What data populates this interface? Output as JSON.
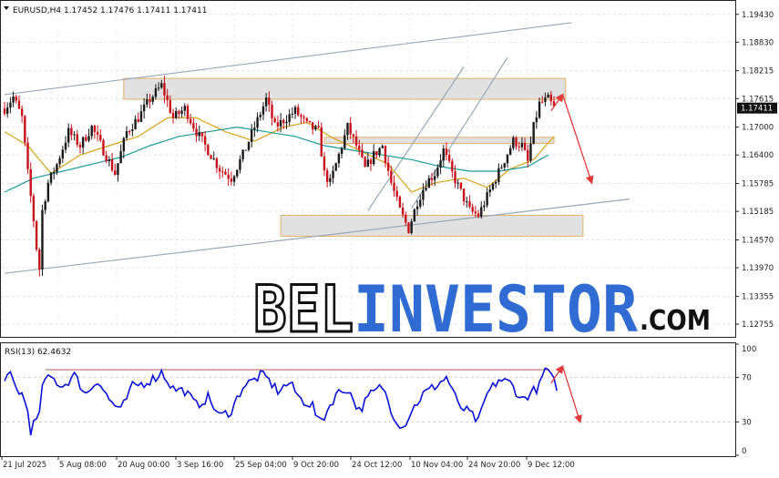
{
  "header": {
    "symbol_icon": "triangle-down-icon",
    "main_info": "EURUSD,H4  1.17452  1.17476  1.17411  1.17411",
    "rsi_info": "RSI(13) 62.4632"
  },
  "watermark": {
    "part1": "BEL",
    "part2": "INVESTOR",
    "part3": ".COM",
    "color1": "#111111",
    "color2": "#2f6bd3"
  },
  "colors": {
    "bull": "#1a1a1a",
    "bear": "#c8101a",
    "ma_fast": "#d7a21a",
    "ma_slow": "#1a9b9b",
    "channel": "#9aa7b8",
    "zone_fill": "#e1e1e1",
    "zone_border": "#e3b06a",
    "arrow": "#e23a3a",
    "rsi": "#0a10d8",
    "rsi_level": "#b07070",
    "price_tag_bg": "#111111",
    "price_tag_fg": "#ffffff"
  },
  "chart_data": [
    {
      "type": "candlestick",
      "symbol": "EURUSD",
      "timeframe": "H4",
      "ohlc_last": {
        "open": 1.17452,
        "high": 1.17476,
        "low": 1.17411,
        "close": 1.17411
      },
      "current_price": "1.17411",
      "ylim": [
        1.125,
        1.197
      ],
      "y_ticks": [
        "1.19430",
        "1.18830",
        "1.18215",
        "1.17615",
        "1.17000",
        "1.16400",
        "1.15785",
        "1.15185",
        "1.14570",
        "1.13970",
        "1.13355",
        "1.12755"
      ],
      "y_tick_values": [
        1.1943,
        1.1883,
        1.18215,
        1.17615,
        1.17,
        1.164,
        1.15785,
        1.15185,
        1.1457,
        1.1397,
        1.13355,
        1.12755
      ],
      "x_ticks": [
        "21 Jul 2025",
        "5 Aug 08:00",
        "20 Aug 00:00",
        "3 Sep 16:00",
        "25 Sep 04:00",
        "9 Oct 20:00",
        "24 Oct 12:00",
        "10 Nov 04:00",
        "24 Nov 20:00",
        "9 Dec 12:00"
      ],
      "price_path": [
        [
          0,
          1.174
        ],
        [
          3,
          1.1765
        ],
        [
          6,
          1.172
        ],
        [
          8,
          1.16
        ],
        [
          10,
          1.15
        ],
        [
          11,
          1.144
        ],
        [
          12,
          1.1395
        ],
        [
          13,
          1.152
        ],
        [
          15,
          1.158
        ],
        [
          18,
          1.162
        ],
        [
          22,
          1.169
        ],
        [
          26,
          1.166
        ],
        [
          30,
          1.17
        ],
        [
          34,
          1.165
        ],
        [
          38,
          1.16
        ],
        [
          42,
          1.169
        ],
        [
          46,
          1.172
        ],
        [
          50,
          1.176
        ],
        [
          54,
          1.179
        ],
        [
          58,
          1.172
        ],
        [
          62,
          1.174
        ],
        [
          66,
          1.169
        ],
        [
          70,
          1.165
        ],
        [
          74,
          1.161
        ],
        [
          78,
          1.159
        ],
        [
          82,
          1.164
        ],
        [
          86,
          1.17
        ],
        [
          88,
          1.173
        ],
        [
          90,
          1.176
        ],
        [
          93,
          1.17
        ],
        [
          96,
          1.1715
        ],
        [
          100,
          1.1735
        ],
        [
          104,
          1.1705
        ],
        [
          108,
          1.169
        ],
        [
          110,
          1.16
        ],
        [
          112,
          1.158
        ],
        [
          115,
          1.164
        ],
        [
          118,
          1.17
        ],
        [
          121,
          1.166
        ],
        [
          124,
          1.161
        ],
        [
          127,
          1.164
        ],
        [
          130,
          1.166
        ],
        [
          133,
          1.158
        ],
        [
          136,
          1.152
        ],
        [
          139,
          1.148
        ],
        [
          142,
          1.154
        ],
        [
          145,
          1.158
        ],
        [
          148,
          1.16
        ],
        [
          151,
          1.165
        ],
        [
          154,
          1.16
        ],
        [
          157,
          1.156
        ],
        [
          160,
          1.152
        ],
        [
          163,
          1.151
        ],
        [
          166,
          1.155
        ],
        [
          169,
          1.159
        ],
        [
          172,
          1.163
        ],
        [
          175,
          1.167
        ],
        [
          178,
          1.166
        ],
        [
          180,
          1.1625
        ],
        [
          182,
          1.17
        ],
        [
          184,
          1.175
        ],
        [
          187,
          1.176
        ],
        [
          189,
          1.1741
        ]
      ],
      "moving_averages": [
        {
          "color_key": "ma_fast",
          "path": [
            [
              0,
              1.169
            ],
            [
              8,
              1.166
            ],
            [
              16,
              1.16
            ],
            [
              26,
              1.164
            ],
            [
              36,
              1.166
            ],
            [
              46,
              1.168
            ],
            [
              56,
              1.172
            ],
            [
              66,
              1.172
            ],
            [
              76,
              1.169
            ],
            [
              86,
              1.167
            ],
            [
              96,
              1.17
            ],
            [
              104,
              1.171
            ],
            [
              112,
              1.168
            ],
            [
              122,
              1.165
            ],
            [
              132,
              1.162
            ],
            [
              140,
              1.156
            ],
            [
              148,
              1.158
            ],
            [
              158,
              1.159
            ],
            [
              166,
              1.157
            ],
            [
              174,
              1.161
            ],
            [
              182,
              1.163
            ],
            [
              189,
              1.168
            ]
          ]
        },
        {
          "color_key": "ma_slow",
          "path": [
            [
              0,
              1.156
            ],
            [
              10,
              1.159
            ],
            [
              20,
              1.1605
            ],
            [
              30,
              1.162
            ],
            [
              40,
              1.1635
            ],
            [
              50,
              1.166
            ],
            [
              60,
              1.168
            ],
            [
              70,
              1.169
            ],
            [
              80,
              1.17
            ],
            [
              90,
              1.169
            ],
            [
              100,
              1.168
            ],
            [
              110,
              1.166
            ],
            [
              120,
              1.165
            ],
            [
              130,
              1.164
            ],
            [
              140,
              1.163
            ],
            [
              150,
              1.1615
            ],
            [
              160,
              1.1605
            ],
            [
              170,
              1.1605
            ],
            [
              180,
              1.1615
            ],
            [
              187,
              1.164
            ]
          ]
        }
      ],
      "channels": [
        [
          [
            0,
            1.177
          ],
          [
            195,
            1.1925
          ]
        ],
        [
          [
            0,
            1.1385
          ],
          [
            215,
            1.1545
          ]
        ],
        [
          [
            125,
            1.152
          ],
          [
            158,
            1.183
          ]
        ],
        [
          [
            140,
            1.1525
          ],
          [
            173,
            1.185
          ]
        ]
      ],
      "zones": [
        {
          "x": [
            41,
            193
          ],
          "y": [
            1.176,
            1.1805
          ]
        },
        {
          "x": [
            110,
            189
          ],
          "y": [
            1.1665,
            1.1678
          ]
        },
        {
          "x": [
            95,
            199
          ],
          "y": [
            1.1465,
            1.151
          ]
        }
      ],
      "arrows": [
        [
          [
            188,
            1.1735
          ],
          [
            192,
            1.177
          ]
        ],
        [
          [
            192,
            1.177
          ],
          [
            202,
            1.158
          ]
        ]
      ],
      "x_count": 190
    },
    {
      "type": "line",
      "name": "RSI(13)",
      "value": "62.4632",
      "ylim": [
        0,
        100
      ],
      "y_ticks": [
        "100",
        "70",
        "30",
        "0"
      ],
      "y_tick_values": [
        100,
        70,
        30,
        0
      ],
      "levels": [
        70,
        30
      ],
      "resistance_line": [
        [
          14,
          77
        ],
        [
          170,
          77
        ]
      ],
      "values_path": [
        [
          0,
          65
        ],
        [
          2,
          72
        ],
        [
          4,
          60
        ],
        [
          6,
          55
        ],
        [
          8,
          40
        ],
        [
          9,
          20
        ],
        [
          10,
          28
        ],
        [
          12,
          35
        ],
        [
          13,
          65
        ],
        [
          16,
          70
        ],
        [
          20,
          62
        ],
        [
          24,
          72
        ],
        [
          28,
          55
        ],
        [
          32,
          68
        ],
        [
          36,
          50
        ],
        [
          40,
          40
        ],
        [
          44,
          62
        ],
        [
          48,
          65
        ],
        [
          52,
          70
        ],
        [
          54,
          75
        ],
        [
          58,
          60
        ],
        [
          62,
          58
        ],
        [
          66,
          45
        ],
        [
          70,
          52
        ],
        [
          74,
          35
        ],
        [
          78,
          40
        ],
        [
          82,
          62
        ],
        [
          86,
          68
        ],
        [
          88,
          72
        ],
        [
          90,
          70
        ],
        [
          94,
          58
        ],
        [
          98,
          65
        ],
        [
          102,
          50
        ],
        [
          106,
          45
        ],
        [
          108,
          30
        ],
        [
          110,
          35
        ],
        [
          114,
          55
        ],
        [
          118,
          60
        ],
        [
          122,
          40
        ],
        [
          126,
          55
        ],
        [
          130,
          62
        ],
        [
          134,
          35
        ],
        [
          137,
          25
        ],
        [
          140,
          40
        ],
        [
          144,
          55
        ],
        [
          148,
          62
        ],
        [
          152,
          70
        ],
        [
          154,
          60
        ],
        [
          156,
          45
        ],
        [
          160,
          38
        ],
        [
          163,
          30
        ],
        [
          166,
          55
        ],
        [
          170,
          68
        ],
        [
          174,
          65
        ],
        [
          178,
          50
        ],
        [
          182,
          58
        ],
        [
          184,
          62
        ],
        [
          186,
          78
        ],
        [
          188,
          70
        ],
        [
          190,
          62
        ]
      ],
      "arrows": [
        [
          [
            188,
            65
          ],
          [
            192,
            80
          ]
        ],
        [
          [
            192,
            80
          ],
          [
            198,
            30
          ]
        ]
      ],
      "x_count": 190
    }
  ]
}
